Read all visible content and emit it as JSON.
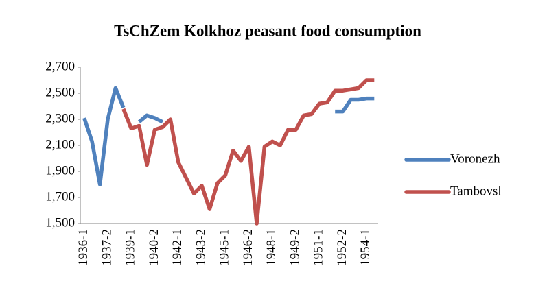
{
  "chart_data": {
    "type": "line",
    "title": "TsChZem Kolkhoz peasant food consumption",
    "categories": [
      "1936-1",
      null,
      null,
      "1937-2",
      null,
      null,
      "1939-1",
      null,
      null,
      "1940-2",
      null,
      null,
      "1942-1",
      null,
      null,
      "1943-2",
      null,
      null,
      "1945-1",
      null,
      null,
      "1946-2",
      null,
      null,
      "1948-1",
      null,
      null,
      "1949-2",
      null,
      null,
      "1951-1",
      null,
      null,
      "1952-2",
      null,
      null,
      "1954-1",
      null
    ],
    "series": [
      {
        "name": "Voronezh",
        "color": "#4f81bd",
        "values": [
          2310,
          2130,
          1800,
          2300,
          2540,
          2390,
          null,
          2280,
          2330,
          2310,
          2280,
          null,
          null,
          null,
          null,
          null,
          null,
          null,
          null,
          null,
          null,
          null,
          null,
          null,
          null,
          null,
          null,
          null,
          null,
          null,
          null,
          null,
          2360,
          2360,
          2450,
          2450,
          2460,
          2460
        ]
      },
      {
        "name": "Tambovsl",
        "color": "#c0504d",
        "values": [
          null,
          null,
          null,
          null,
          null,
          2380,
          2230,
          2250,
          1950,
          2220,
          2240,
          2300,
          1970,
          1850,
          1730,
          1790,
          1610,
          1810,
          1870,
          2060,
          1980,
          2090,
          1500,
          2090,
          2130,
          2100,
          2220,
          2220,
          2330,
          2340,
          2420,
          2430,
          2520,
          2520,
          2530,
          2540,
          2600,
          2600
        ]
      }
    ],
    "ylim": [
      1500,
      2700
    ],
    "yticks": [
      {
        "value": 1500,
        "label": "1,500"
      },
      {
        "value": 1700,
        "label": "1,700"
      },
      {
        "value": 1900,
        "label": "1,900"
      },
      {
        "value": 2100,
        "label": "2,100"
      },
      {
        "value": 2300,
        "label": "2,300"
      },
      {
        "value": 2500,
        "label": "2,500"
      },
      {
        "value": 2700,
        "label": "2,700"
      }
    ],
    "grid": false,
    "legend": "right"
  }
}
